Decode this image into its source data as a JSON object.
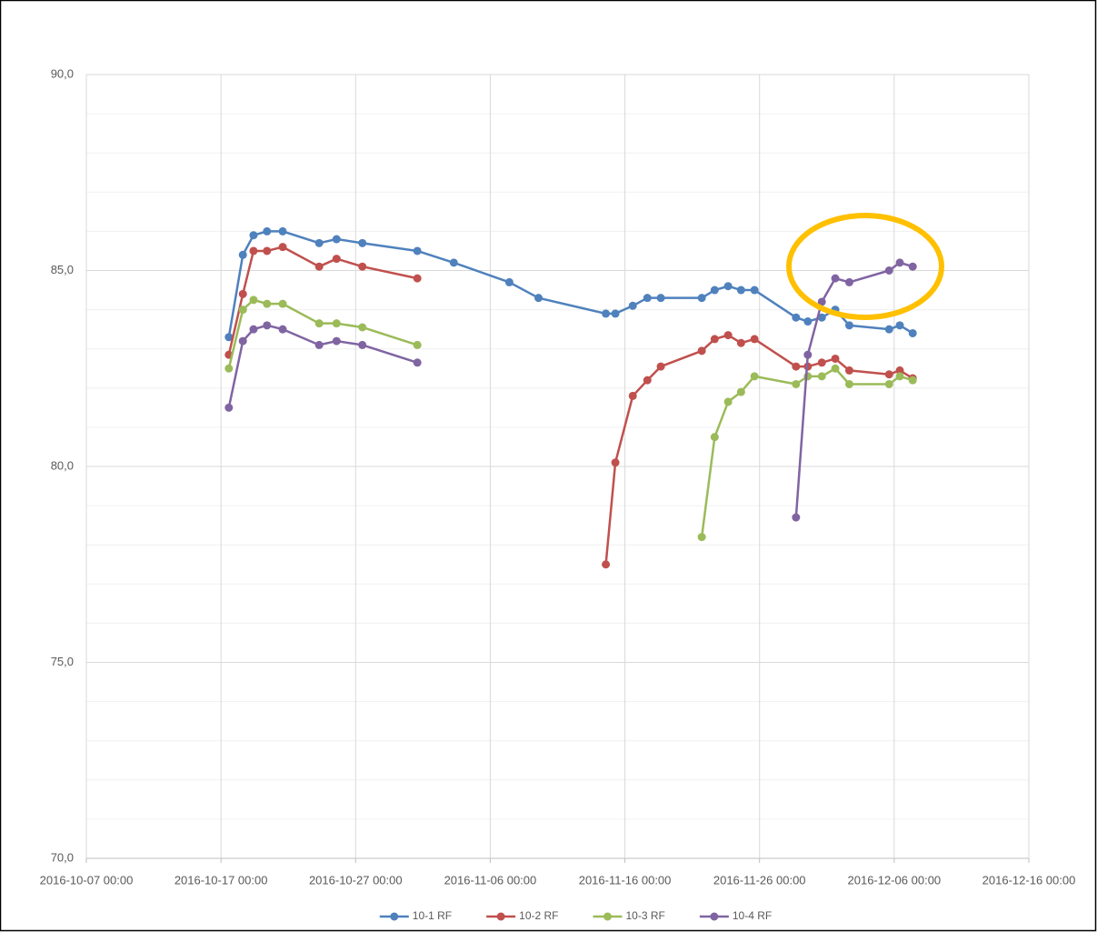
{
  "chart_data": {
    "type": "line",
    "x": [
      "2016-10-17 14:00",
      "2016-10-18 15:00",
      "2016-10-19 10:00",
      "2016-10-20 10:00",
      "2016-10-21 14:00",
      "2016-10-24 07:00",
      "2016-10-25 14:00",
      "2016-10-27 12:00",
      "2016-10-31 14:00",
      "2016-11-03 07:00",
      "2016-11-07 10:00",
      "2016-11-09 14:00",
      "2016-11-14 14:00",
      "2016-11-15 07:00",
      "2016-11-16 14:00",
      "2016-11-17 16:00",
      "2016-11-18 16:00",
      "2016-11-21 17:00",
      "2016-11-22 16:00",
      "2016-11-23 16:00",
      "2016-11-24 15:00",
      "2016-11-25 15:00",
      "2016-11-28 17:00",
      "2016-11-29 14:00",
      "2016-11-30 15:00",
      "2016-12-01 15:00",
      "2016-12-02 16:00",
      "2016-12-05 15:00",
      "2016-12-06 10:00",
      "2016-12-07 09:00"
    ],
    "series": [
      {
        "name": "10-1 RF",
        "color": "#4f81bd",
        "values": [
          83.3,
          85.4,
          85.9,
          86.0,
          86.0,
          85.7,
          85.8,
          85.7,
          85.5,
          85.2,
          84.7,
          84.3,
          83.9,
          83.9,
          84.1,
          84.3,
          84.3,
          84.3,
          84.5,
          84.6,
          84.5,
          84.5,
          83.8,
          83.7,
          83.8,
          84.0,
          83.6,
          83.5,
          83.6,
          83.4
        ]
      },
      {
        "name": "10-2 RF",
        "color": "#c0504d",
        "values": [
          82.85,
          84.4,
          85.5,
          85.5,
          85.6,
          85.1,
          85.3,
          85.1,
          84.8,
          null,
          null,
          null,
          77.5,
          80.1,
          81.8,
          82.2,
          82.55,
          82.95,
          83.25,
          83.35,
          83.15,
          83.25,
          82.55,
          82.55,
          82.65,
          82.75,
          82.45,
          82.35,
          82.45,
          82.25
        ]
      },
      {
        "name": "10-3 RF",
        "color": "#9bbb59",
        "values": [
          82.5,
          84.0,
          84.25,
          84.15,
          84.15,
          83.65,
          83.65,
          83.55,
          83.1,
          null,
          null,
          null,
          null,
          null,
          null,
          null,
          null,
          78.2,
          80.75,
          81.65,
          81.9,
          82.3,
          82.1,
          82.3,
          82.3,
          82.5,
          82.1,
          82.1,
          82.3,
          82.2
        ]
      },
      {
        "name": "10-4 RF",
        "color": "#8064a2",
        "values": [
          81.5,
          83.2,
          83.5,
          83.6,
          83.5,
          83.1,
          83.2,
          83.1,
          82.65,
          null,
          null,
          null,
          null,
          null,
          null,
          null,
          null,
          null,
          null,
          null,
          null,
          null,
          78.7,
          82.85,
          84.2,
          84.8,
          84.7,
          85.0,
          85.2,
          85.1
        ]
      }
    ],
    "xlim": [
      "2016-10-07 00:00",
      "2016-12-16 00:00"
    ],
    "xticks": [
      "2016-10-07 00:00",
      "2016-10-17 00:00",
      "2016-10-27 00:00",
      "2016-11-06 00:00",
      "2016-11-16 00:00",
      "2016-11-26 00:00",
      "2016-12-06 00:00",
      "2016-12-16 00:00"
    ],
    "ylim": [
      70,
      90
    ],
    "yticks": [
      {
        "value": 70,
        "label": "70,0"
      },
      {
        "value": 75,
        "label": "75,0"
      },
      {
        "value": 80,
        "label": "80,0"
      },
      {
        "value": 85,
        "label": "85,0"
      },
      {
        "value": 90,
        "label": "90,0"
      }
    ],
    "y_minor_ticks": [
      71,
      72,
      73,
      74,
      76,
      77,
      78,
      79,
      81,
      82,
      83,
      84,
      86,
      87,
      88,
      89
    ],
    "grid": true,
    "legend": "bottom"
  }
}
